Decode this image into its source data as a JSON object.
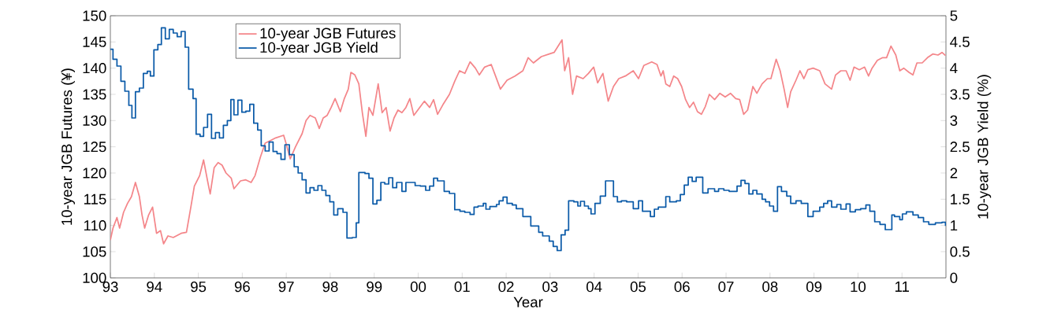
{
  "chart_data": {
    "type": "line",
    "xlabel": "Year",
    "ylabel": "10-year JGB Futures (¥)",
    "y2label": "10-year JGB Yield (%)",
    "legend": "top left",
    "xlim": [
      1993,
      2012
    ],
    "xticks": [
      {
        "value": 1993,
        "label": "93"
      },
      {
        "value": 1994,
        "label": "94"
      },
      {
        "value": 1995,
        "label": "95"
      },
      {
        "value": 1996,
        "label": "96"
      },
      {
        "value": 1997,
        "label": "97"
      },
      {
        "value": 1998,
        "label": "98"
      },
      {
        "value": 1999,
        "label": "99"
      },
      {
        "value": 2000,
        "label": "00"
      },
      {
        "value": 2001,
        "label": "01"
      },
      {
        "value": 2002,
        "label": "02"
      },
      {
        "value": 2003,
        "label": "03"
      },
      {
        "value": 2004,
        "label": "04"
      },
      {
        "value": 2005,
        "label": "05"
      },
      {
        "value": 2006,
        "label": "06"
      },
      {
        "value": 2007,
        "label": "07"
      },
      {
        "value": 2008,
        "label": "08"
      },
      {
        "value": 2009,
        "label": "09"
      },
      {
        "value": 2010,
        "label": "10"
      },
      {
        "value": 2011,
        "label": "11"
      }
    ],
    "ylim": [
      100,
      150
    ],
    "yticks": [
      100,
      105,
      110,
      115,
      120,
      125,
      130,
      135,
      140,
      145,
      150
    ],
    "y2lim": [
      0,
      5
    ],
    "y2ticks": [
      0,
      0.5,
      1,
      1.5,
      2,
      2.5,
      3,
      3.5,
      4,
      4.5,
      5
    ],
    "series": [
      {
        "name": "10-year JGB Futures",
        "color": "#f4868a",
        "x": [
          1993.0,
          1993.06,
          1993.15,
          1993.21,
          1993.3,
          1993.39,
          1993.48,
          1993.57,
          1993.66,
          1993.72,
          1993.78,
          1993.87,
          1993.96,
          1994.05,
          1994.14,
          1994.21,
          1994.31,
          1994.43,
          1994.61,
          1994.73,
          1994.82,
          1994.91,
          1995.03,
          1995.12,
          1995.21,
          1995.27,
          1995.36,
          1995.45,
          1995.54,
          1995.63,
          1995.75,
          1995.81,
          1995.96,
          1996.08,
          1996.2,
          1996.29,
          1996.41,
          1996.52,
          1996.64,
          1996.76,
          1996.94,
          1997.0,
          1997.09,
          1997.21,
          1997.36,
          1997.45,
          1997.54,
          1997.66,
          1997.75,
          1997.84,
          1997.93,
          1998.02,
          1998.11,
          1998.23,
          1998.32,
          1998.41,
          1998.47,
          1998.56,
          1998.65,
          1998.73,
          1998.81,
          1998.88,
          1998.97,
          1999.09,
          1999.18,
          1999.27,
          1999.36,
          1999.45,
          1999.54,
          1999.63,
          1999.72,
          1999.81,
          1999.9,
          1999.99,
          2000.14,
          2000.26,
          2000.35,
          2000.44,
          2000.56,
          2000.71,
          2000.83,
          2000.94,
          2001.06,
          2001.18,
          2001.3,
          2001.39,
          2001.51,
          2001.66,
          2001.75,
          2001.87,
          2002.02,
          2002.2,
          2002.38,
          2002.5,
          2002.62,
          2002.8,
          2002.98,
          2003.09,
          2003.27,
          2003.33,
          2003.42,
          2003.51,
          2003.6,
          2003.75,
          2003.87,
          2003.99,
          2004.08,
          2004.2,
          2004.32,
          2004.44,
          2004.56,
          2004.71,
          2004.89,
          2005.01,
          2005.13,
          2005.31,
          2005.43,
          2005.52,
          2005.57,
          2005.63,
          2005.72,
          2005.81,
          2005.9,
          2005.99,
          2006.08,
          2006.17,
          2006.26,
          2006.35,
          2006.44,
          2006.53,
          2006.62,
          2006.74,
          2006.86,
          2006.98,
          2007.1,
          2007.22,
          2007.31,
          2007.4,
          2007.49,
          2007.61,
          2007.7,
          2007.82,
          2007.94,
          2008.02,
          2008.14,
          2008.23,
          2008.32,
          2008.4,
          2008.47,
          2008.59,
          2008.68,
          2008.77,
          2008.86,
          2008.98,
          2009.13,
          2009.25,
          2009.4,
          2009.49,
          2009.61,
          2009.73,
          2009.82,
          2009.91,
          2010.03,
          2010.15,
          2010.24,
          2010.32,
          2010.44,
          2010.56,
          2010.65,
          2010.75,
          2010.86,
          2010.95,
          2011.04,
          2011.16,
          2011.25,
          2011.34,
          2011.46,
          2011.58,
          2011.7,
          2011.82,
          2011.91,
          2011.99
        ],
        "values": [
          107.2,
          109.5,
          111.5,
          109.5,
          112.5,
          114.2,
          115.5,
          118.2,
          115.5,
          112.0,
          109.5,
          112.0,
          113.5,
          108.5,
          109.0,
          106.5,
          108.0,
          107.7,
          108.5,
          108.7,
          113.0,
          117.5,
          119.5,
          122.5,
          118.5,
          116.0,
          121.0,
          122.0,
          121.5,
          120.0,
          119.0,
          117.0,
          118.5,
          118.7,
          118.2,
          119.5,
          123.0,
          125.7,
          126.2,
          126.7,
          127.2,
          125.5,
          122.7,
          125.0,
          127.5,
          130.0,
          131.0,
          130.5,
          128.5,
          130.5,
          131.0,
          132.5,
          134.2,
          131.7,
          134.2,
          136.0,
          139.2,
          138.7,
          137.0,
          131.5,
          127.0,
          132.5,
          131.0,
          137.0,
          131.5,
          132.5,
          128.0,
          130.5,
          132.0,
          131.5,
          132.5,
          134.2,
          131.0,
          132.0,
          133.7,
          132.5,
          134.0,
          131.2,
          133.0,
          135.0,
          137.5,
          139.5,
          139.0,
          141.2,
          140.0,
          138.7,
          140.2,
          140.7,
          138.7,
          136.0,
          137.7,
          138.5,
          139.5,
          142.0,
          141.0,
          142.2,
          142.7,
          143.0,
          145.4,
          139.5,
          142.0,
          135.0,
          138.5,
          138.0,
          139.0,
          140.2,
          137.2,
          139.0,
          133.7,
          136.5,
          138.0,
          138.5,
          139.5,
          138.0,
          140.5,
          141.2,
          140.7,
          138.5,
          139.5,
          137.0,
          136.5,
          138.5,
          138.0,
          136.5,
          134.0,
          132.5,
          133.5,
          131.7,
          131.2,
          132.7,
          135.0,
          134.0,
          135.2,
          134.5,
          135.2,
          134.2,
          134.0,
          131.2,
          132.0,
          136.5,
          135.2,
          137.0,
          138.0,
          138.0,
          141.7,
          139.5,
          136.0,
          132.5,
          135.5,
          137.7,
          139.5,
          138.0,
          139.7,
          140.0,
          139.5,
          137.0,
          136.0,
          138.7,
          139.5,
          139.5,
          137.7,
          140.2,
          139.7,
          140.2,
          138.5,
          140.0,
          141.5,
          142.0,
          142.0,
          144.2,
          142.5,
          139.5,
          140.0,
          139.2,
          138.7,
          141.0,
          141.0,
          142.0,
          142.7,
          142.5,
          143.0,
          142.4
        ]
      },
      {
        "name": "10-year JGB Yield",
        "color": "#0a5aa8",
        "type": "step",
        "axis": "y2",
        "x": [
          1993.0,
          1993.06,
          1993.15,
          1993.24,
          1993.33,
          1993.42,
          1993.49,
          1993.57,
          1993.66,
          1993.75,
          1993.84,
          1993.91,
          1993.99,
          1994.08,
          1994.16,
          1994.25,
          1994.34,
          1994.43,
          1994.52,
          1994.61,
          1994.7,
          1994.78,
          1994.88,
          1994.95,
          1995.04,
          1995.12,
          1995.21,
          1995.3,
          1995.39,
          1995.48,
          1995.57,
          1995.66,
          1995.74,
          1995.81,
          1995.9,
          1995.99,
          1996.08,
          1996.17,
          1996.26,
          1996.35,
          1996.43,
          1996.52,
          1996.61,
          1996.7,
          1996.79,
          1996.88,
          1996.97,
          1997.07,
          1997.18,
          1997.27,
          1997.36,
          1997.45,
          1997.54,
          1997.63,
          1997.72,
          1997.81,
          1997.9,
          1997.99,
          1998.08,
          1998.17,
          1998.29,
          1998.38,
          1998.5,
          1998.59,
          1998.65,
          1998.79,
          1998.88,
          1998.97,
          1999.06,
          1999.15,
          1999.24,
          1999.33,
          1999.42,
          1999.51,
          1999.63,
          1999.72,
          1999.84,
          1999.93,
          2000.05,
          2000.17,
          2000.26,
          2000.35,
          2000.44,
          2000.59,
          2000.71,
          2000.83,
          2000.95,
          2001.06,
          2001.18,
          2001.27,
          2001.36,
          2001.48,
          2001.54,
          2001.63,
          2001.78,
          2001.84,
          2001.93,
          2002.02,
          2002.14,
          2002.23,
          2002.38,
          2002.56,
          2002.74,
          2002.83,
          2002.98,
          2003.07,
          2003.16,
          2003.25,
          2003.34,
          2003.42,
          2003.54,
          2003.63,
          2003.69,
          2003.78,
          2003.87,
          2003.93,
          2004.02,
          2004.14,
          2004.26,
          2004.35,
          2004.44,
          2004.53,
          2004.62,
          2004.74,
          2004.89,
          2005.01,
          2005.1,
          2005.28,
          2005.37,
          2005.46,
          2005.55,
          2005.63,
          2005.72,
          2005.87,
          2005.96,
          2006.05,
          2006.14,
          2006.23,
          2006.32,
          2006.47,
          2006.59,
          2006.74,
          2006.83,
          2006.95,
          2007.07,
          2007.25,
          2007.34,
          2007.43,
          2007.52,
          2007.61,
          2007.7,
          2007.82,
          2007.9,
          2007.99,
          2008.08,
          2008.17,
          2008.26,
          2008.38,
          2008.47,
          2008.59,
          2008.71,
          2008.86,
          2008.98,
          2009.13,
          2009.22,
          2009.31,
          2009.4,
          2009.52,
          2009.61,
          2009.73,
          2009.82,
          2009.94,
          2010.06,
          2010.18,
          2010.27,
          2010.38,
          2010.5,
          2010.62,
          2010.77,
          2010.83,
          2010.95,
          2011.01,
          2011.1,
          2011.25,
          2011.37,
          2011.49,
          2011.61,
          2011.76,
          2011.91,
          2011.99
        ],
        "values": [
          4.36,
          4.17,
          4.04,
          3.75,
          3.56,
          3.29,
          3.05,
          3.55,
          3.62,
          3.9,
          3.94,
          3.85,
          4.35,
          4.45,
          4.77,
          4.56,
          4.74,
          4.67,
          4.6,
          4.7,
          4.4,
          3.6,
          3.42,
          2.74,
          2.7,
          2.87,
          3.12,
          2.66,
          2.77,
          2.67,
          2.91,
          3.0,
          3.4,
          3.11,
          3.39,
          3.16,
          3.18,
          3.31,
          2.95,
          2.82,
          2.52,
          2.42,
          2.59,
          2.41,
          2.37,
          2.26,
          2.54,
          2.35,
          2.12,
          2.0,
          1.87,
          1.62,
          1.72,
          1.67,
          1.76,
          1.67,
          1.57,
          1.45,
          1.2,
          1.32,
          1.25,
          0.76,
          0.77,
          1.05,
          2.01,
          1.99,
          1.9,
          1.41,
          1.48,
          1.82,
          1.79,
          1.91,
          1.72,
          1.82,
          1.65,
          1.82,
          1.82,
          1.76,
          1.75,
          1.67,
          1.75,
          1.9,
          1.85,
          1.65,
          1.61,
          1.3,
          1.27,
          1.25,
          1.21,
          1.35,
          1.37,
          1.42,
          1.31,
          1.36,
          1.4,
          1.47,
          1.54,
          1.42,
          1.39,
          1.32,
          1.17,
          0.99,
          0.87,
          0.8,
          0.7,
          0.6,
          0.52,
          0.82,
          0.91,
          1.47,
          1.45,
          1.37,
          1.46,
          1.37,
          1.32,
          1.22,
          1.42,
          1.56,
          1.85,
          1.85,
          1.55,
          1.45,
          1.47,
          1.45,
          1.32,
          1.47,
          1.27,
          1.17,
          1.31,
          1.35,
          1.35,
          1.55,
          1.45,
          1.47,
          1.59,
          1.77,
          1.92,
          1.84,
          1.92,
          1.62,
          1.7,
          1.65,
          1.7,
          1.67,
          1.65,
          1.75,
          1.86,
          1.8,
          1.6,
          1.67,
          1.6,
          1.5,
          1.45,
          1.37,
          1.27,
          1.74,
          1.65,
          1.56,
          1.42,
          1.47,
          1.42,
          1.17,
          1.27,
          1.35,
          1.42,
          1.47,
          1.35,
          1.4,
          1.31,
          1.41,
          1.26,
          1.3,
          1.32,
          1.39,
          1.27,
          1.07,
          1.02,
          0.92,
          1.2,
          1.17,
          1.11,
          1.22,
          1.26,
          1.2,
          1.15,
          1.07,
          1.02,
          1.05,
          1.06,
          0.99
        ]
      }
    ]
  }
}
